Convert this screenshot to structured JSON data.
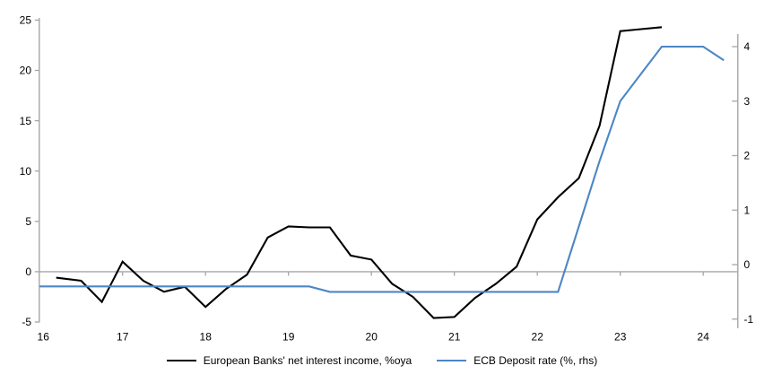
{
  "chart_data": {
    "type": "line",
    "title": "",
    "grid": "zero-line-only",
    "legend_position": "bottom",
    "x_axis": {
      "ticks": [
        16,
        17,
        18,
        19,
        20,
        21,
        22,
        23,
        24
      ],
      "range": [
        16,
        24.42
      ]
    },
    "left_axis": {
      "label": "",
      "ticks": [
        25,
        20,
        15,
        10,
        5,
        0,
        -5
      ],
      "range": [
        -5.5,
        25.7
      ]
    },
    "right_axis": {
      "label": "",
      "ticks": [
        4,
        3,
        2,
        1,
        0,
        -1
      ],
      "range": [
        -1.18,
        4.55
      ]
    },
    "series": [
      {
        "name": "European Banks' net interest income, %oya",
        "color": "#000000",
        "axis": "left",
        "x": [
          16.2,
          16.5,
          16.75,
          17.0,
          17.25,
          17.5,
          17.75,
          18.0,
          18.25,
          18.5,
          18.75,
          19.0,
          19.25,
          19.5,
          19.75,
          20.0,
          20.25,
          20.5,
          20.75,
          21.0,
          21.25,
          21.5,
          21.75,
          22.0,
          22.25,
          22.5,
          22.75,
          23.0,
          23.25,
          23.5
        ],
        "values": [
          -0.6,
          -0.9,
          -3.0,
          1.0,
          -0.9,
          -2.0,
          -1.5,
          -3.5,
          -1.7,
          -0.3,
          3.4,
          4.5,
          4.4,
          4.4,
          1.6,
          1.2,
          -1.2,
          -2.5,
          -4.6,
          -4.5,
          -2.6,
          -1.2,
          0.5,
          5.2,
          7.4,
          9.3,
          14.5,
          23.9,
          24.1,
          24.3
        ]
      },
      {
        "name": "ECB Deposit rate (%, rhs)",
        "color": "#4d86c4",
        "axis": "right",
        "x": [
          16.0,
          16.25,
          16.5,
          16.75,
          17.0,
          17.25,
          17.5,
          17.75,
          18.0,
          18.25,
          18.5,
          18.75,
          19.0,
          19.25,
          19.5,
          19.75,
          20.0,
          20.25,
          20.5,
          20.75,
          21.0,
          21.25,
          21.5,
          21.75,
          22.0,
          22.25,
          22.5,
          22.75,
          23.0,
          23.25,
          23.5,
          23.75,
          24.0,
          24.25
        ],
        "values": [
          -0.4,
          -0.4,
          -0.4,
          -0.4,
          -0.4,
          -0.4,
          -0.4,
          -0.4,
          -0.4,
          -0.4,
          -0.4,
          -0.4,
          -0.4,
          -0.4,
          -0.5,
          -0.5,
          -0.5,
          -0.5,
          -0.5,
          -0.5,
          -0.5,
          -0.5,
          -0.5,
          -0.5,
          -0.5,
          -0.5,
          0.7,
          1.9,
          3.0,
          3.5,
          4.0,
          4.0,
          4.0,
          3.75
        ]
      }
    ]
  },
  "colors": {
    "axis": "#a6a6a6",
    "text": "#000000",
    "background": "#ffffff"
  }
}
